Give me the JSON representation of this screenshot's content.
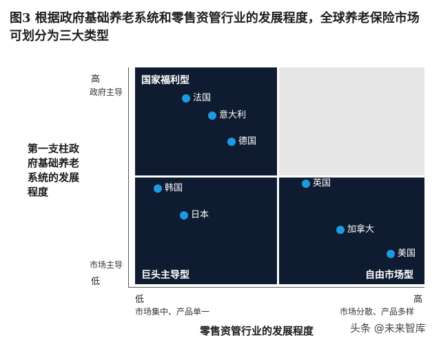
{
  "title": "图3 根据政府基础养老系统和零售资管行业的发展程度，全球养老保险市场可划分为三大类型",
  "y_axis": {
    "label": "第一支柱政府基础养老系统的发展程度",
    "high": "高",
    "high_note": "政府主导",
    "low_note": "市场主导",
    "low": "低"
  },
  "x_axis": {
    "label": "零售资管行业的发展程度",
    "low": "低",
    "low_note": "市场集中、产品单一",
    "high": "高",
    "high_note": "市场分散、产品多样"
  },
  "quadrants": {
    "top_left": "国家福利型",
    "bottom_left": "巨头主导型",
    "bottom_right": "自由市场型"
  },
  "countries": {
    "france": "法国",
    "italy": "意大利",
    "germany": "德国",
    "korea": "韩国",
    "japan": "日本",
    "uk": "英国",
    "canada": "加拿大",
    "usa": "美国"
  },
  "colors": {
    "quadrant_dark": "#0f1b30",
    "quadrant_empty": "#e6e6e6",
    "dot": "#1e9be0"
  },
  "watermark": "头条 @未来智库"
}
